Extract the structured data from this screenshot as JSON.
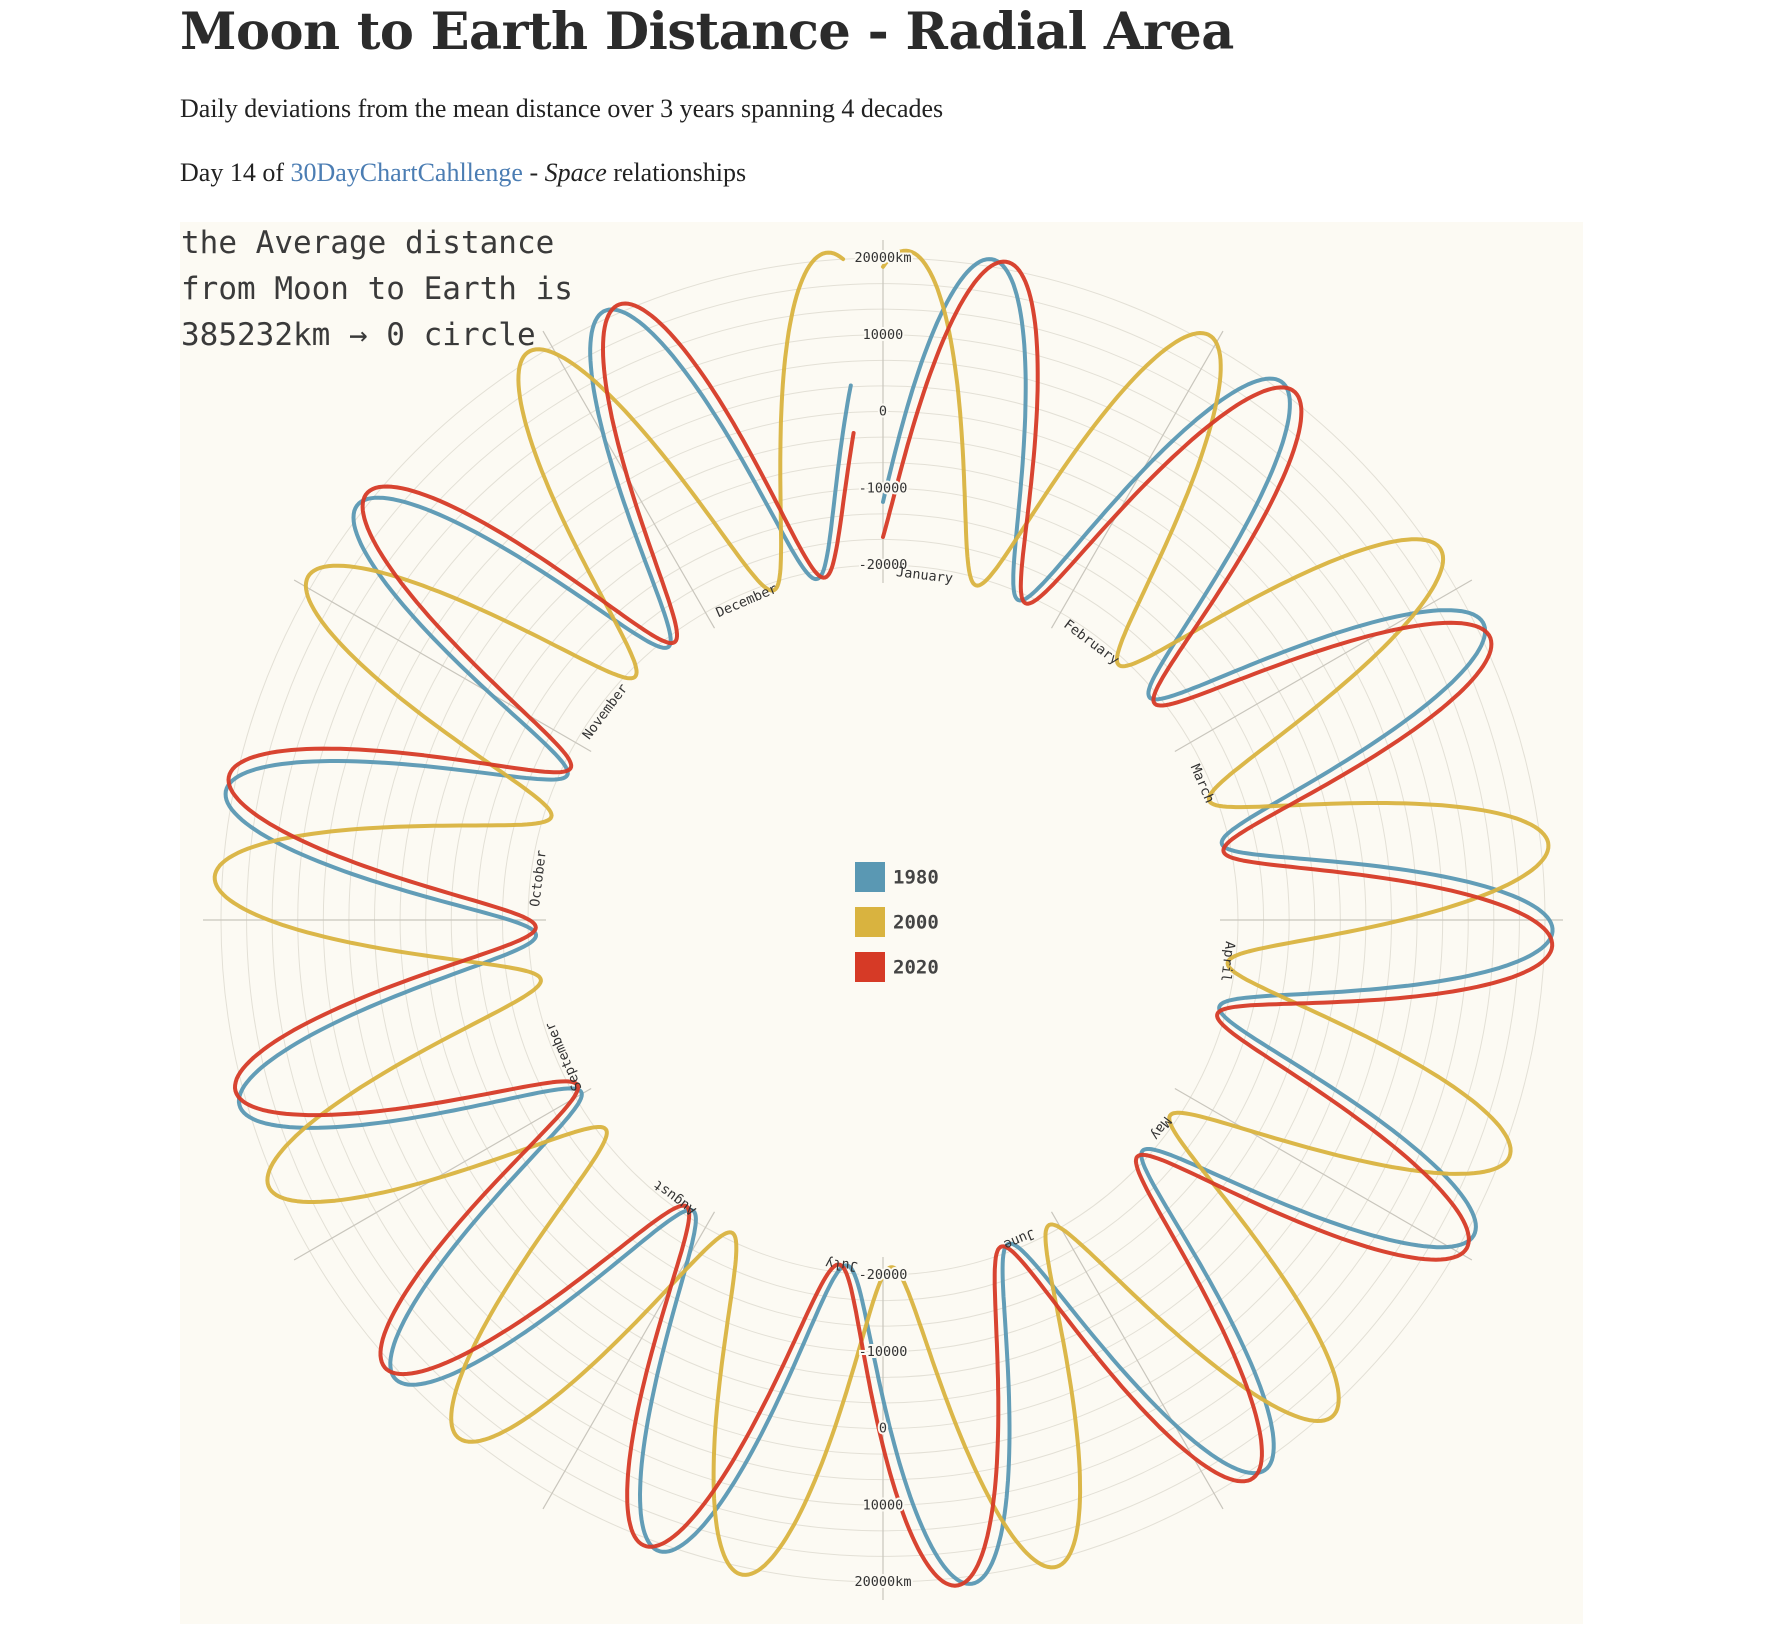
{
  "header": {
    "title": "Moon to Earth Distance - Radial Area",
    "subtitle": "Daily deviations from the mean distance over 3 years spanning 4 decades",
    "day_prefix": "Day 14 of",
    "challenge_link": "30DayChartCahllenge",
    "separator": "-",
    "theme_italic": "Space",
    "theme_rest": "relationships"
  },
  "annotation": {
    "line1": "the Average distance",
    "line2": "from Moon to Earth is",
    "line3": "385232km → 0 circle"
  },
  "chart_data": {
    "type": "line",
    "projection": "polar",
    "angular_axis": {
      "categories": [
        "January",
        "February",
        "March",
        "April",
        "May",
        "June",
        "July",
        "August",
        "September",
        "October",
        "November",
        "December"
      ],
      "direction": "clockwise",
      "start": "top"
    },
    "radial_axis": {
      "range": [
        -20000,
        20000
      ],
      "tick_values": [
        -20000,
        -10000,
        0,
        10000,
        20000
      ],
      "tick_labels": [
        "-20000",
        "-10000",
        "0",
        "10000",
        "20000km"
      ],
      "grid": true
    },
    "series": [
      {
        "name": "1980",
        "color": "#5a98b3",
        "period_days": 27.55,
        "phase_day": 9.5,
        "amplitude": 21000
      },
      {
        "name": "2000",
        "color": "#d9b33f",
        "period_days": 27.55,
        "phase_day": 2.0,
        "amplitude": 21000
      },
      {
        "name": "2020",
        "color": "#d63a26",
        "period_days": 27.55,
        "phase_day": 10.8,
        "amplitude": 21000
      }
    ],
    "legend": {
      "position": "center",
      "entries": [
        "1980",
        "2000",
        "2020"
      ]
    },
    "background": "#fcfaf3"
  }
}
